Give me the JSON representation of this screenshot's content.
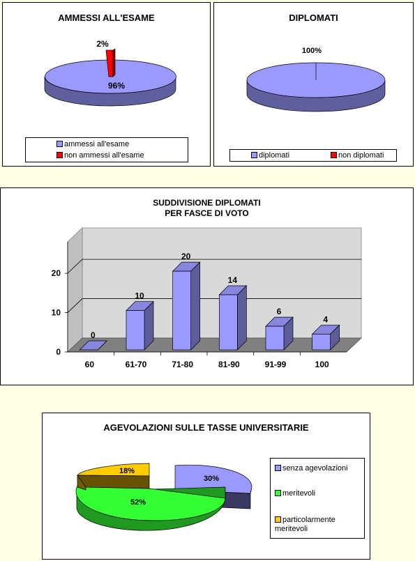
{
  "chart_data": [
    {
      "type": "pie",
      "title": "AMMESSI ALL'ESAME",
      "slices": [
        {
          "name": "ammessi all'esame",
          "label": "96%",
          "value": 96,
          "color": "#9999FF"
        },
        {
          "name": "non ammessi all'esame",
          "label": "2%",
          "value": 2,
          "color": "#FF0000"
        }
      ],
      "legend": "bottom"
    },
    {
      "type": "pie",
      "title": "DIPLOMATI",
      "slices": [
        {
          "name": "diplomati",
          "label": "100%",
          "value": 100,
          "color": "#9999FF"
        },
        {
          "name": "non diplomati",
          "label": "",
          "value": 0,
          "color": "#FF0000"
        }
      ],
      "legend": "bottom"
    },
    {
      "type": "bar",
      "title": "SUDDIVISIONE DIPLOMATI",
      "subtitle": "PER FASCE DI VOTO",
      "categories": [
        "60",
        "61-70",
        "71-80",
        "81-90",
        "91-99",
        "100"
      ],
      "values": [
        0,
        10,
        20,
        14,
        6,
        4
      ],
      "yticks": [
        0,
        10,
        20
      ],
      "ylim": [
        0,
        28
      ],
      "grid": true,
      "color": "#9999FF"
    },
    {
      "type": "pie",
      "title": "AGEVOLAZIONI SULLE TASSE UNIVERSITARIE",
      "slices": [
        {
          "name": "senza agevolazioni",
          "label": "30%",
          "value": 30,
          "color": "#9999FF"
        },
        {
          "name": "meritevoli",
          "label": "52%",
          "value": 52,
          "color": "#33FF33"
        },
        {
          "name": "particolarmente meritevoli",
          "label": "18%",
          "value": 18,
          "color": "#FFCC00"
        }
      ],
      "legend": "right"
    }
  ]
}
